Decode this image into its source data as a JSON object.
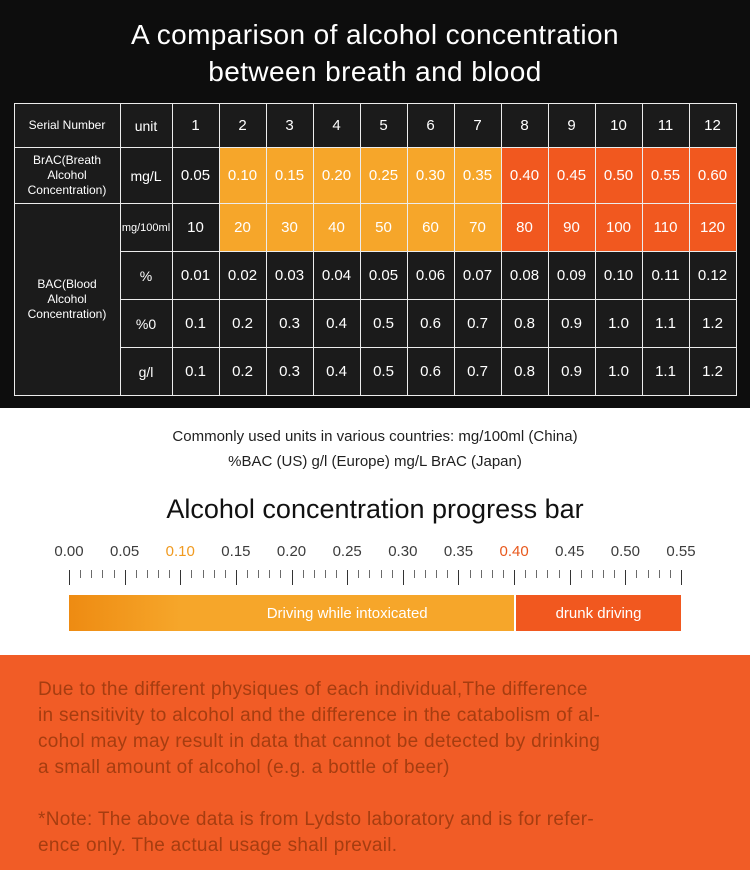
{
  "title": {
    "line1": "A comparison of alcohol concentration",
    "line2": "between breath and blood"
  },
  "table": {
    "header": {
      "serial": "Serial Number",
      "unit": "unit",
      "numbers": [
        "1",
        "2",
        "3",
        "4",
        "5",
        "6",
        "7",
        "8",
        "9",
        "10",
        "11",
        "12"
      ]
    },
    "brac": {
      "label": "BrAC(Breath Alcohol Concentration)",
      "unit": "mg/L",
      "values": [
        "0.05",
        "0.10",
        "0.15",
        "0.20",
        "0.25",
        "0.30",
        "0.35",
        "0.40",
        "0.45",
        "0.50",
        "0.55",
        "0.60"
      ]
    },
    "bac": {
      "label": "BAC(Blood Alcohol Concentration)",
      "rows": [
        {
          "unit": "mg/100ml",
          "values": [
            "10",
            "20",
            "30",
            "40",
            "50",
            "60",
            "70",
            "80",
            "90",
            "100",
            "110",
            "120"
          ]
        },
        {
          "unit": "%",
          "values": [
            "0.01",
            "0.02",
            "0.03",
            "0.04",
            "0.05",
            "0.06",
            "0.07",
            "0.08",
            "0.09",
            "0.10",
            "0.11",
            "0.12"
          ]
        },
        {
          "unit": "%0",
          "values": [
            "0.1",
            "0.2",
            "0.3",
            "0.4",
            "0.5",
            "0.6",
            "0.7",
            "0.8",
            "0.9",
            "1.0",
            "1.1",
            "1.2"
          ]
        },
        {
          "unit": "g/l",
          "values": [
            "0.1",
            "0.2",
            "0.3",
            "0.4",
            "0.5",
            "0.6",
            "0.7",
            "0.8",
            "0.9",
            "1.0",
            "1.1",
            "1.2"
          ]
        }
      ]
    }
  },
  "caption": {
    "line1": "Commonly used units in various countries: mg/100ml (China)",
    "line2": "%BAC (US) g/l (Europe) mg/L BrAC (Japan)"
  },
  "progress": {
    "heading": "Alcohol concentration progress bar",
    "scale_labels": [
      "0.00",
      "0.05",
      "0.10",
      "0.15",
      "0.20",
      "0.25",
      "0.30",
      "0.35",
      "0.40",
      "0.45",
      "0.50",
      "0.55"
    ],
    "bar": {
      "intoxicated_label": "Driving while intoxicated",
      "drunk_label": "drunk driving"
    }
  },
  "disclaimer": {
    "lines": [
      "Due to the different physiques of each individual,The difference",
      "in sensitivity to alcohol and the difference in the catabolism of al-",
      "cohol may may result in data that cannot be detected by drinking",
      "a small amount of alcohol (e.g. a bottle of beer)"
    ]
  },
  "note": {
    "lines": [
      "*Note: The above data is from Lydsto laboratory and is for refer-",
      "ence only. The actual usage shall prevail."
    ]
  },
  "colors": {
    "amber": "#f6a62a",
    "orange": "#f1581f",
    "dark_background": "#0d0d0d",
    "bottom_background": "#f15c26",
    "tick_highlight_010": "#f09a20",
    "tick_highlight_040": "#e8581c"
  },
  "chart_data": [
    {
      "type": "table",
      "title": "A comparison of alcohol concentration between breath and blood",
      "columns": [
        "Serial Number",
        "unit",
        "1",
        "2",
        "3",
        "4",
        "5",
        "6",
        "7",
        "8",
        "9",
        "10",
        "11",
        "12"
      ],
      "rows": [
        {
          "label": "BrAC(Breath Alcohol Concentration)",
          "unit": "mg/L",
          "values": [
            0.05,
            0.1,
            0.15,
            0.2,
            0.25,
            0.3,
            0.35,
            0.4,
            0.45,
            0.5,
            0.55,
            0.6
          ]
        },
        {
          "label": "BAC(Blood Alcohol Concentration)",
          "unit": "mg/100ml",
          "values": [
            10,
            20,
            30,
            40,
            50,
            60,
            70,
            80,
            90,
            100,
            110,
            120
          ]
        },
        {
          "label": "BAC(Blood Alcohol Concentration)",
          "unit": "%",
          "values": [
            0.01,
            0.02,
            0.03,
            0.04,
            0.05,
            0.06,
            0.07,
            0.08,
            0.09,
            0.1,
            0.11,
            0.12
          ]
        },
        {
          "label": "BAC(Blood Alcohol Concentration)",
          "unit": "%0",
          "values": [
            0.1,
            0.2,
            0.3,
            0.4,
            0.5,
            0.6,
            0.7,
            0.8,
            0.9,
            1.0,
            1.1,
            1.2
          ]
        },
        {
          "label": "BAC(Blood Alcohol Concentration)",
          "unit": "g/l",
          "values": [
            0.1,
            0.2,
            0.3,
            0.4,
            0.5,
            0.6,
            0.7,
            0.8,
            0.9,
            1.0,
            1.1,
            1.2
          ]
        }
      ],
      "highlight_ranges": [
        {
          "range": "0.10-0.35 mg/L",
          "color": "#f6a62a"
        },
        {
          "range": "0.40-0.60 mg/L",
          "color": "#f1581f"
        }
      ]
    },
    {
      "type": "bar",
      "title": "Alcohol concentration progress bar",
      "axis_range": [
        0.0,
        0.55
      ],
      "tick_step": 0.05,
      "minor_tick_step": 0.01,
      "segments": [
        {
          "label": "",
          "from": 0.0,
          "to": 0.1,
          "color": "#f6a62a"
        },
        {
          "label": "Driving while intoxicated",
          "from": 0.1,
          "to": 0.4,
          "color": "#f6a62a"
        },
        {
          "label": "drunk driving",
          "from": 0.4,
          "to": 0.55,
          "color": "#f1581f"
        }
      ],
      "highlighted_ticks": [
        0.1,
        0.4
      ]
    }
  ]
}
